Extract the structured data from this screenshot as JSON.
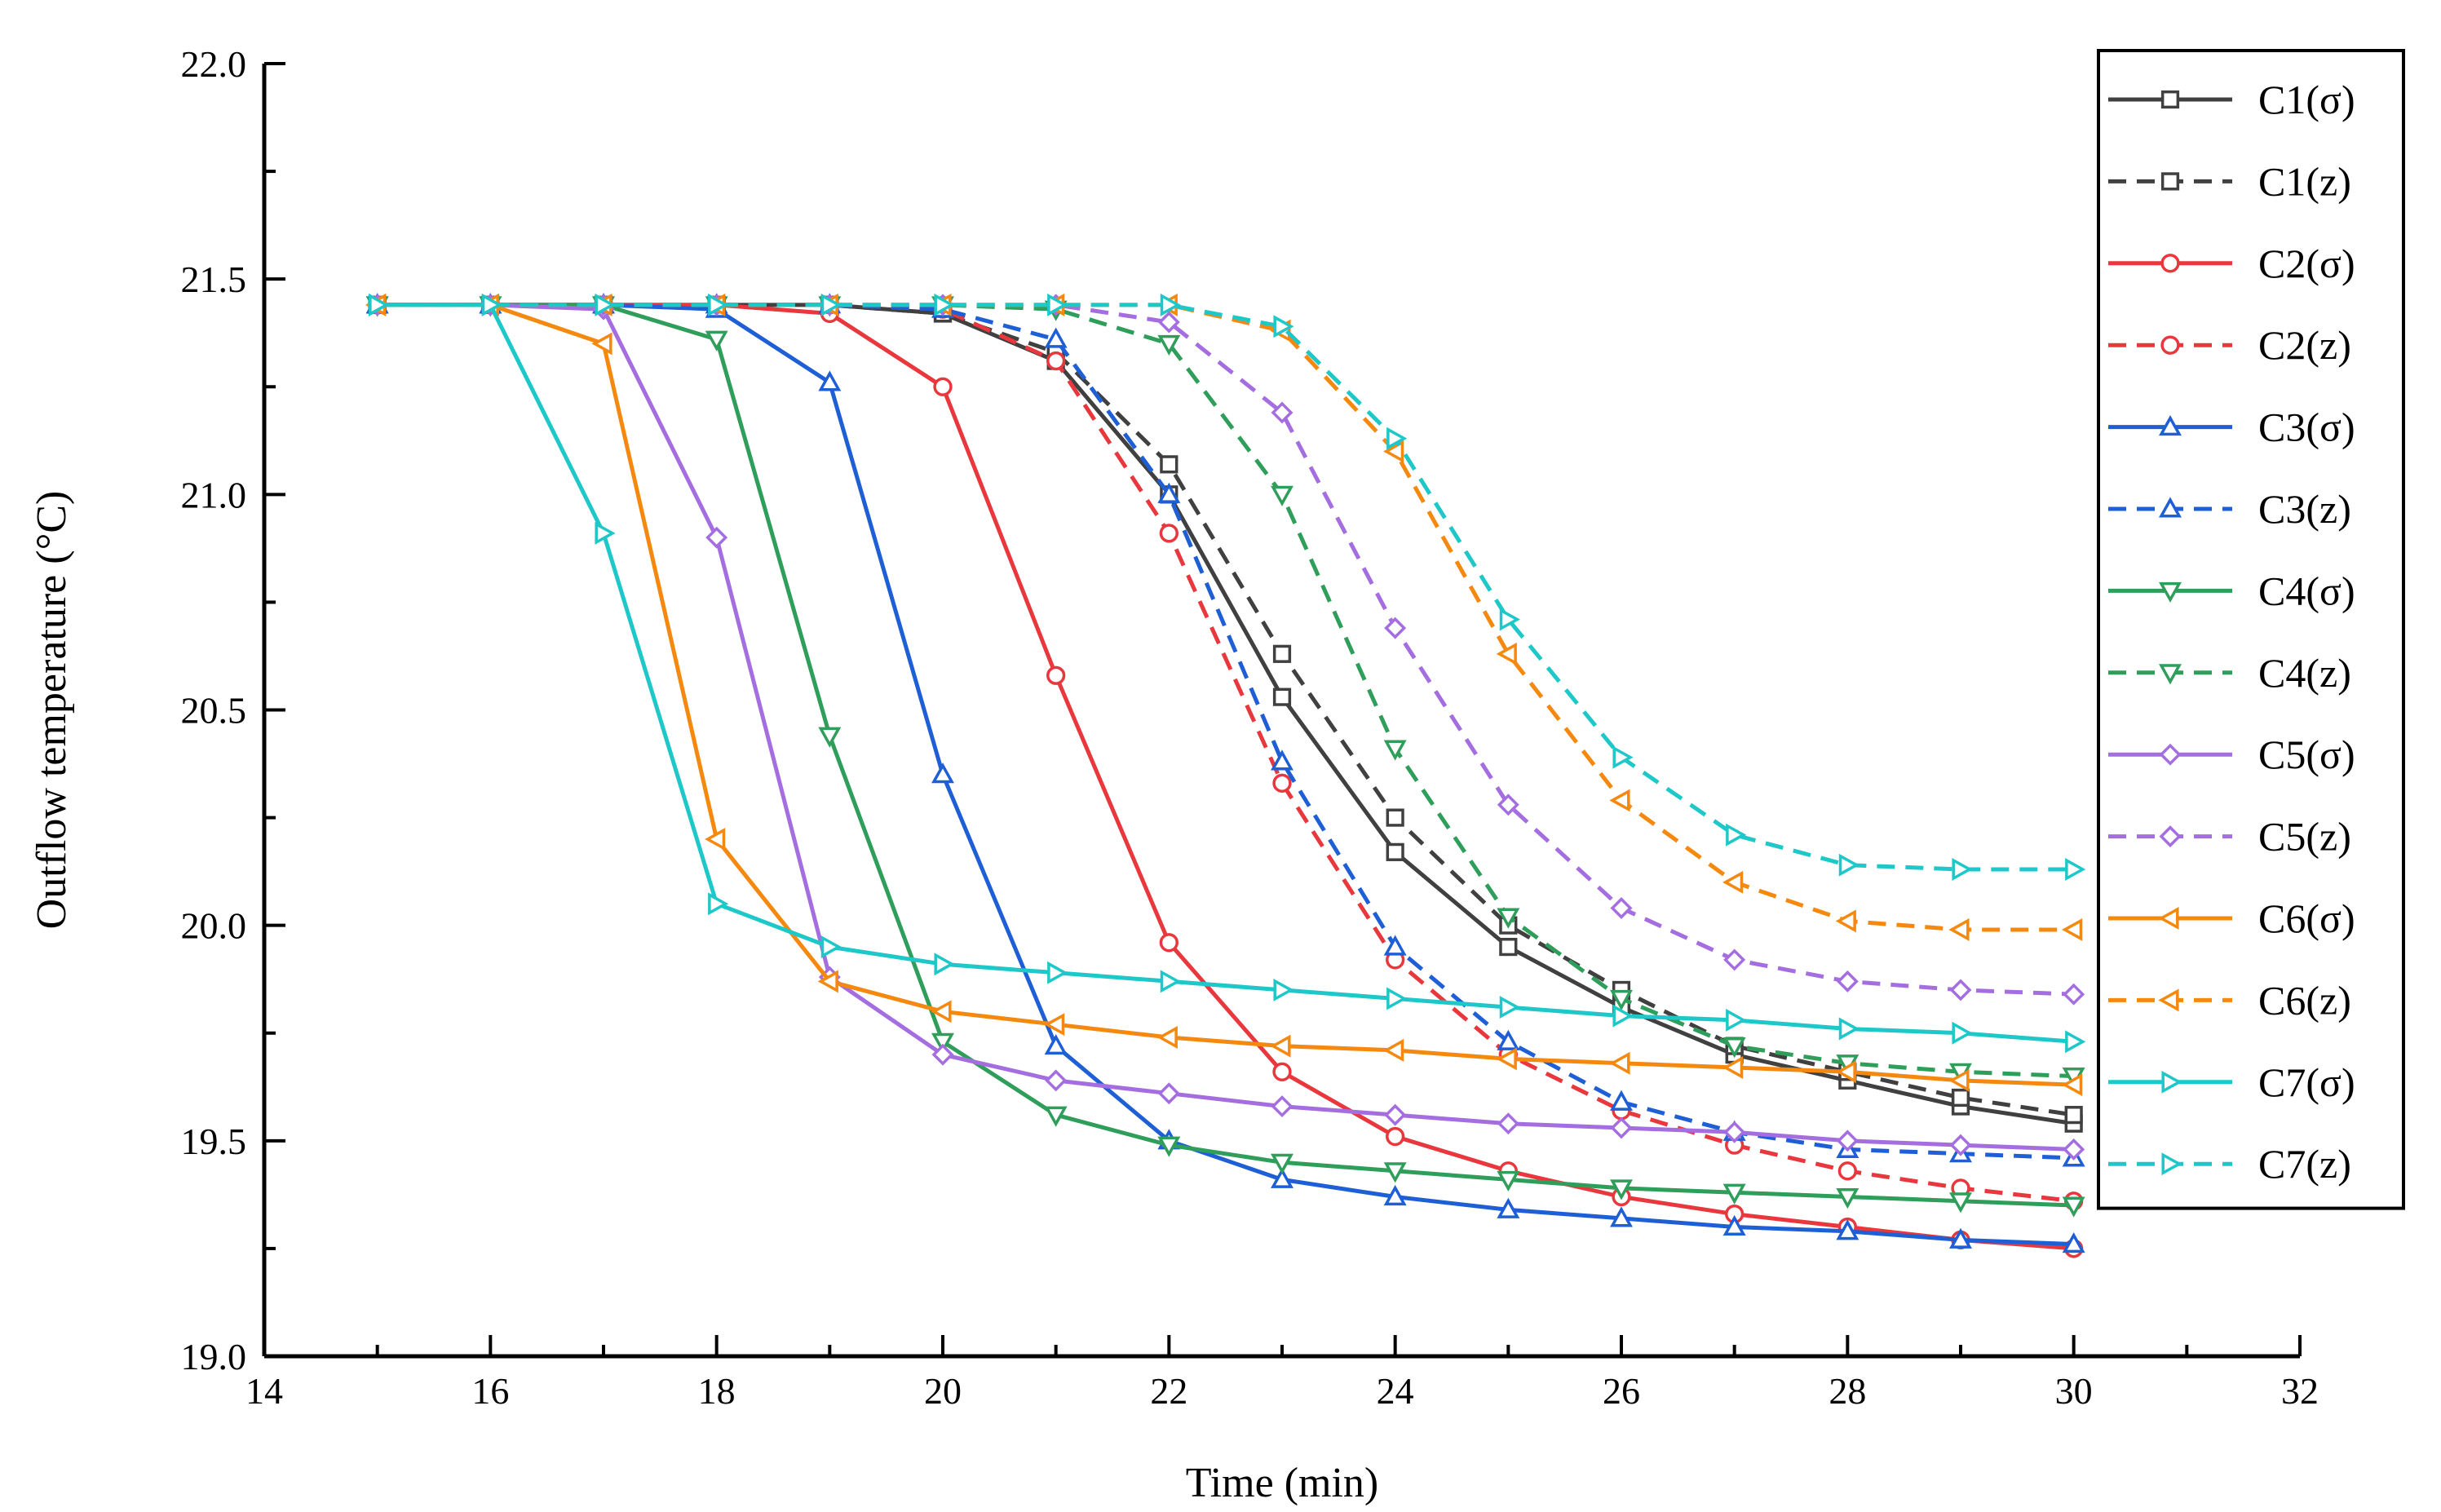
{
  "chart_data": {
    "type": "line",
    "title": "",
    "xlabel": "Time (min)",
    "ylabel": "Outflow temperature (°C)",
    "xlim": [
      14,
      32
    ],
    "ylim": [
      19.0,
      22.0
    ],
    "xticks": [
      14,
      16,
      18,
      20,
      22,
      24,
      26,
      28,
      30,
      32
    ],
    "xtick_labels": [
      "14",
      "16",
      "18",
      "20",
      "22",
      "24",
      "26",
      "28",
      "30",
      "32"
    ],
    "yticks": [
      19.0,
      19.5,
      20.0,
      20.5,
      21.0,
      21.5,
      22.0
    ],
    "ytick_labels": [
      "19.0",
      "19.5",
      "20.0",
      "20.5",
      "21.0",
      "21.5",
      "22.0"
    ],
    "grid": false,
    "legend_position": "right",
    "x": [
      15,
      16,
      17,
      18,
      19,
      20,
      21,
      22,
      23,
      24,
      25,
      26,
      27,
      28,
      29,
      30
    ],
    "series": [
      {
        "name": "C1(σ)",
        "color": "#404040",
        "dash": "solid",
        "marker": "square",
        "values": [
          21.44,
          21.44,
          21.44,
          21.44,
          21.44,
          21.42,
          21.31,
          21.0,
          20.53,
          20.17,
          19.95,
          19.81,
          19.7,
          19.64,
          19.58,
          19.54
        ]
      },
      {
        "name": "C1(z)",
        "color": "#404040",
        "dash": "dashed",
        "marker": "square",
        "values": [
          21.44,
          21.44,
          21.44,
          21.44,
          21.44,
          21.42,
          21.33,
          21.07,
          20.63,
          20.25,
          20.0,
          19.85,
          19.72,
          19.66,
          19.6,
          19.56
        ]
      },
      {
        "name": "C2(σ)",
        "color": "#e8383d",
        "dash": "solid",
        "marker": "circle",
        "values": [
          21.44,
          21.44,
          21.44,
          21.44,
          21.42,
          21.25,
          20.58,
          19.96,
          19.66,
          19.51,
          19.43,
          19.37,
          19.33,
          19.3,
          19.27,
          19.25
        ]
      },
      {
        "name": "C2(z)",
        "color": "#e8383d",
        "dash": "dashed",
        "marker": "circle",
        "values": [
          21.44,
          21.44,
          21.44,
          21.44,
          21.44,
          21.43,
          21.31,
          20.91,
          20.33,
          19.92,
          19.7,
          19.57,
          19.49,
          19.43,
          19.39,
          19.36
        ]
      },
      {
        "name": "C3(σ)",
        "color": "#1f5fd6",
        "dash": "solid",
        "marker": "triangle-up",
        "values": [
          21.44,
          21.44,
          21.44,
          21.43,
          21.26,
          20.35,
          19.72,
          19.5,
          19.41,
          19.37,
          19.34,
          19.32,
          19.3,
          19.29,
          19.27,
          19.26
        ]
      },
      {
        "name": "C3(z)",
        "color": "#1f5fd6",
        "dash": "dashed",
        "marker": "triangle-up",
        "values": [
          21.44,
          21.44,
          21.44,
          21.44,
          21.44,
          21.43,
          21.36,
          21.0,
          20.38,
          19.95,
          19.73,
          19.59,
          19.52,
          19.48,
          19.47,
          19.46
        ]
      },
      {
        "name": "C4(σ)",
        "color": "#2f9e5a",
        "dash": "solid",
        "marker": "triangle-down",
        "values": [
          21.44,
          21.44,
          21.44,
          21.36,
          20.44,
          19.73,
          19.56,
          19.49,
          19.45,
          19.43,
          19.41,
          19.39,
          19.38,
          19.37,
          19.36,
          19.35
        ]
      },
      {
        "name": "C4(z)",
        "color": "#2f9e5a",
        "dash": "dashed",
        "marker": "triangle-down",
        "values": [
          21.44,
          21.44,
          21.44,
          21.44,
          21.44,
          21.44,
          21.43,
          21.35,
          21.0,
          20.41,
          20.02,
          19.83,
          19.72,
          19.68,
          19.66,
          19.65
        ]
      },
      {
        "name": "C5(σ)",
        "color": "#a46ee0",
        "dash": "solid",
        "marker": "diamond",
        "values": [
          21.44,
          21.44,
          21.43,
          20.9,
          19.88,
          19.7,
          19.64,
          19.61,
          19.58,
          19.56,
          19.54,
          19.53,
          19.52,
          19.5,
          19.49,
          19.48
        ]
      },
      {
        "name": "C5(z)",
        "color": "#a46ee0",
        "dash": "dashed",
        "marker": "diamond",
        "values": [
          21.44,
          21.44,
          21.44,
          21.44,
          21.44,
          21.44,
          21.44,
          21.4,
          21.19,
          20.69,
          20.28,
          20.04,
          19.92,
          19.87,
          19.85,
          19.84
        ]
      },
      {
        "name": "C6(σ)",
        "color": "#f5890f",
        "dash": "solid",
        "marker": "triangle-left",
        "values": [
          21.44,
          21.44,
          21.35,
          20.2,
          19.87,
          19.8,
          19.77,
          19.74,
          19.72,
          19.71,
          19.69,
          19.68,
          19.67,
          19.66,
          19.64,
          19.63
        ]
      },
      {
        "name": "C6(z)",
        "color": "#f5890f",
        "dash": "dashed",
        "marker": "triangle-left",
        "values": [
          21.44,
          21.44,
          21.44,
          21.44,
          21.44,
          21.44,
          21.44,
          21.44,
          21.38,
          21.1,
          20.63,
          20.29,
          20.1,
          20.01,
          19.99,
          19.99
        ]
      },
      {
        "name": "C7(σ)",
        "color": "#1ec8c8",
        "dash": "solid",
        "marker": "triangle-right",
        "values": [
          21.44,
          21.44,
          20.91,
          20.05,
          19.95,
          19.91,
          19.89,
          19.87,
          19.85,
          19.83,
          19.81,
          19.79,
          19.78,
          19.76,
          19.75,
          19.73
        ]
      },
      {
        "name": "C7(z)",
        "color": "#1ec8c8",
        "dash": "dashed",
        "marker": "triangle-right",
        "values": [
          21.44,
          21.44,
          21.44,
          21.44,
          21.44,
          21.44,
          21.44,
          21.44,
          21.39,
          21.13,
          20.71,
          20.39,
          20.21,
          20.14,
          20.13,
          20.13
        ]
      }
    ]
  }
}
